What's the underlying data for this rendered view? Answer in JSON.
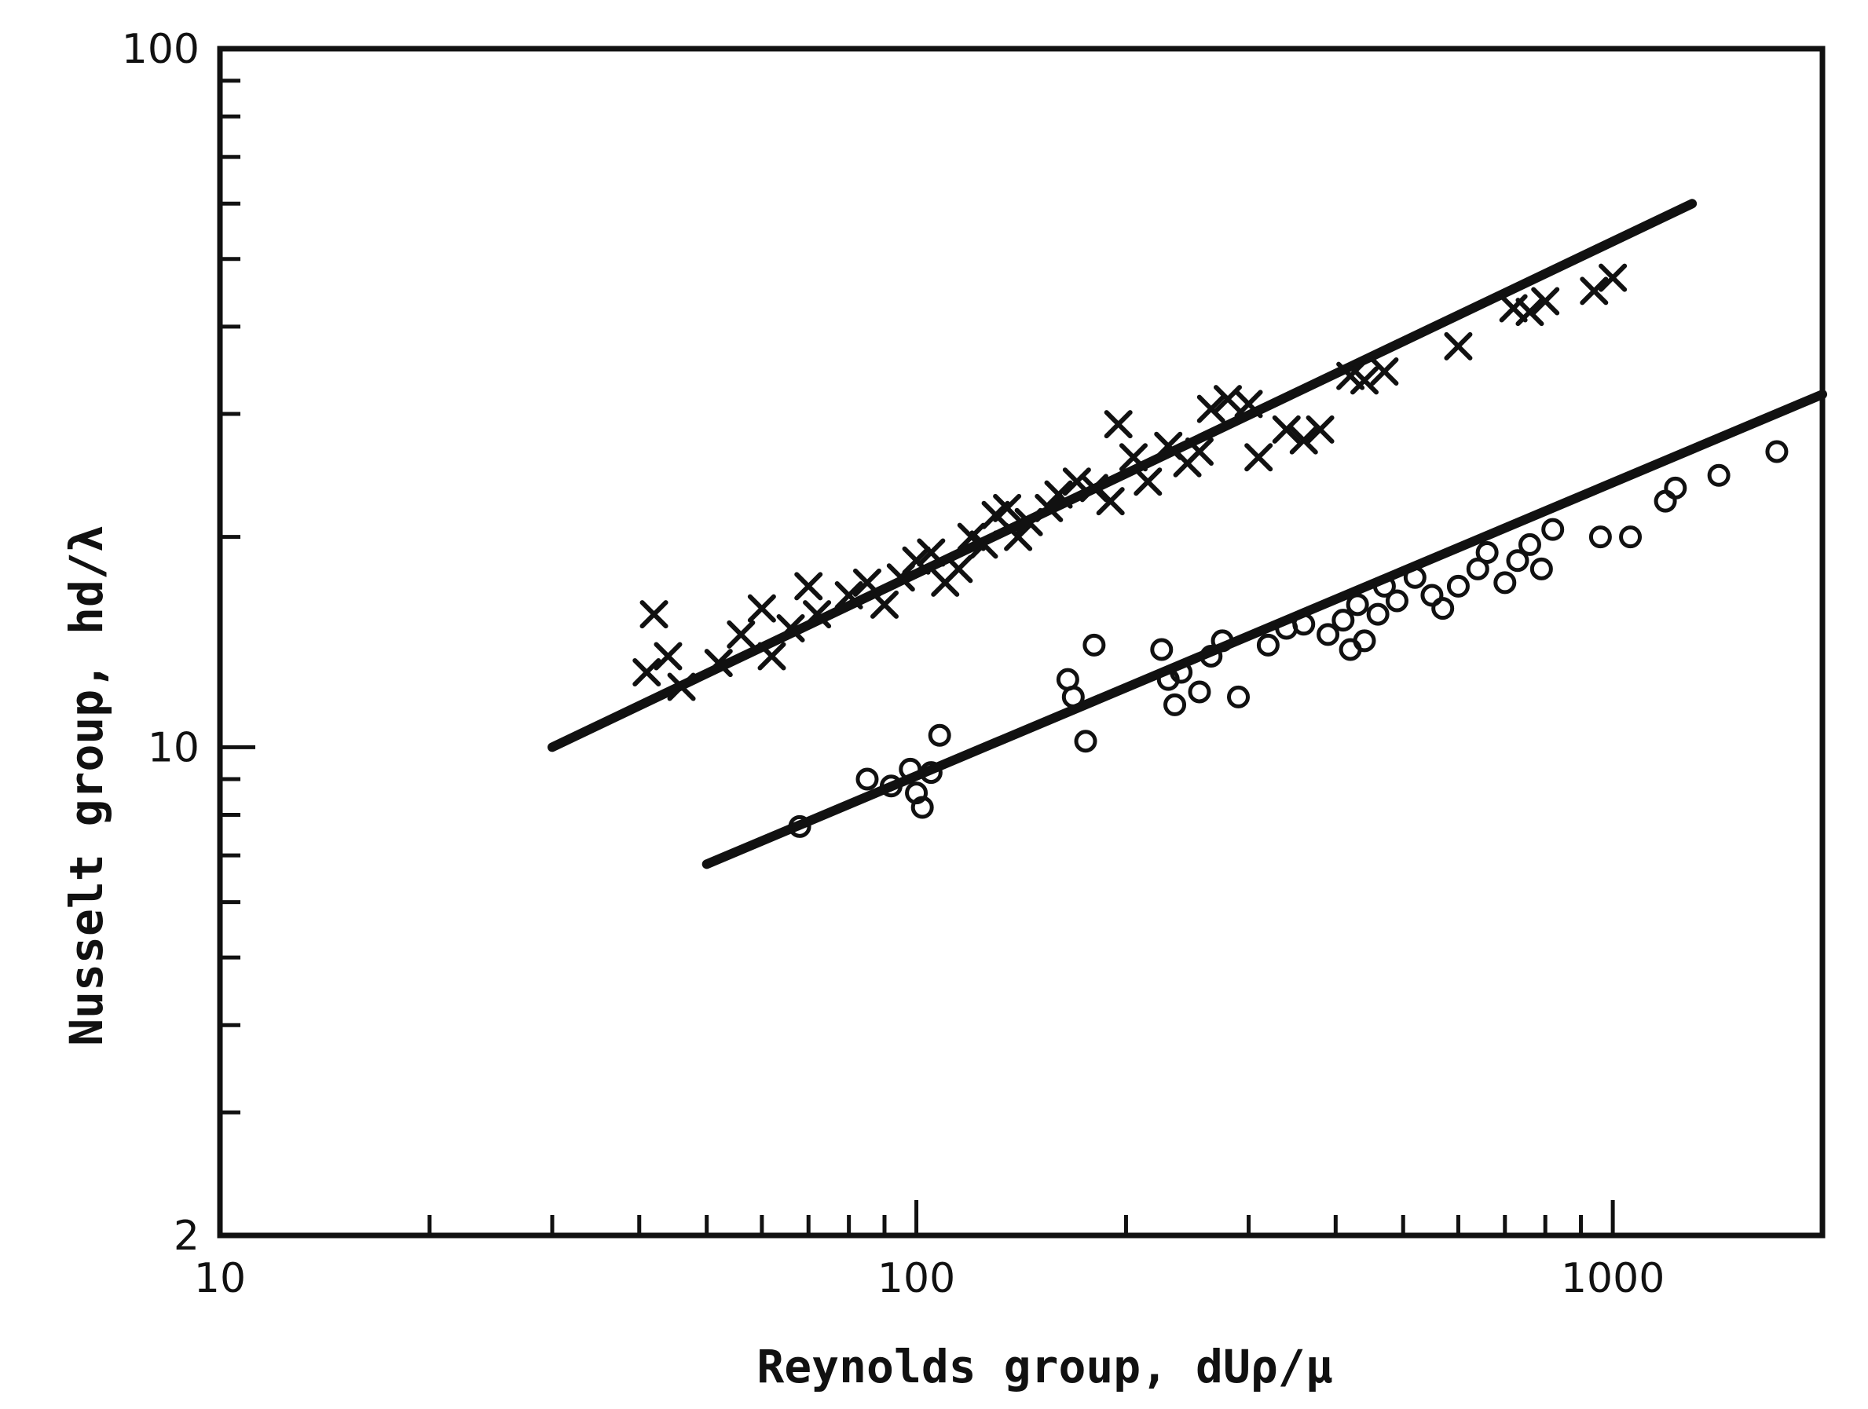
{
  "chart_data": {
    "type": "scatter",
    "title": "",
    "xlabel": "Reynolds  group,  dUρ/μ",
    "ylabel": "Nusselt  group,  hd/λ",
    "x_scale": "log",
    "y_scale": "log",
    "xlim": [
      10,
      2000
    ],
    "ylim": [
      2,
      100
    ],
    "grid": false,
    "legend": "none",
    "x_ticks": [
      {
        "value": 10,
        "label": "10"
      },
      {
        "value": 100,
        "label": "100"
      },
      {
        "value": 1000,
        "label": "1000"
      }
    ],
    "y_ticks": [
      {
        "value": 2,
        "label": "2"
      },
      {
        "value": 10,
        "label": "10"
      },
      {
        "value": 100,
        "label": "100"
      }
    ],
    "x_minor_ticks": [
      20,
      30,
      40,
      50,
      60,
      70,
      80,
      90,
      200,
      300,
      400,
      500,
      600,
      700,
      800,
      900
    ],
    "y_minor_ticks": [
      3,
      4,
      5,
      6,
      7,
      8,
      9,
      20,
      30,
      40,
      50,
      60,
      70,
      80,
      90
    ],
    "series": [
      {
        "marker": "x",
        "points": [
          [
            42,
            15.5
          ],
          [
            44,
            13.5
          ],
          [
            46,
            12.2
          ],
          [
            41,
            12.8
          ],
          [
            52,
            13.2
          ],
          [
            56,
            14.5
          ],
          [
            60,
            15.8
          ],
          [
            62,
            13.5
          ],
          [
            66,
            14.8
          ],
          [
            70,
            17
          ],
          [
            72,
            15.5
          ],
          [
            80,
            16.5
          ],
          [
            85,
            17.2
          ],
          [
            90,
            16
          ],
          [
            95,
            17.5
          ],
          [
            100,
            18.5
          ],
          [
            105,
            19
          ],
          [
            110,
            17.2
          ],
          [
            115,
            18
          ],
          [
            120,
            20
          ],
          [
            125,
            19.5
          ],
          [
            130,
            21.5
          ],
          [
            135,
            22
          ],
          [
            140,
            20
          ],
          [
            145,
            21
          ],
          [
            155,
            22
          ],
          [
            160,
            23
          ],
          [
            170,
            24
          ],
          [
            180,
            23.5
          ],
          [
            190,
            22.5
          ],
          [
            195,
            29
          ],
          [
            205,
            26
          ],
          [
            215,
            24
          ],
          [
            230,
            27
          ],
          [
            245,
            25.5
          ],
          [
            255,
            26.5
          ],
          [
            265,
            30.5
          ],
          [
            280,
            31.5
          ],
          [
            300,
            31
          ],
          [
            310,
            26
          ],
          [
            340,
            28.5
          ],
          [
            360,
            27.5
          ],
          [
            380,
            28.5
          ],
          [
            420,
            34
          ],
          [
            440,
            33.5
          ],
          [
            470,
            34.5
          ],
          [
            600,
            37.5
          ],
          [
            720,
            42.5
          ],
          [
            760,
            42
          ],
          [
            800,
            43.5
          ],
          [
            940,
            45
          ],
          [
            1000,
            47
          ]
        ]
      },
      {
        "marker": "o",
        "points": [
          [
            68,
            7.7
          ],
          [
            85,
            9
          ],
          [
            92,
            8.8
          ],
          [
            98,
            9.3
          ],
          [
            100,
            8.6
          ],
          [
            102,
            8.2
          ],
          [
            105,
            9.2
          ],
          [
            108,
            10.4
          ],
          [
            165,
            12.5
          ],
          [
            168,
            11.8
          ],
          [
            175,
            10.2
          ],
          [
            180,
            14
          ],
          [
            225,
            13.8
          ],
          [
            230,
            12.5
          ],
          [
            235,
            11.5
          ],
          [
            240,
            12.8
          ],
          [
            255,
            12
          ],
          [
            265,
            13.5
          ],
          [
            275,
            14.2
          ],
          [
            290,
            11.8
          ],
          [
            320,
            14
          ],
          [
            340,
            14.8
          ],
          [
            360,
            15
          ],
          [
            390,
            14.5
          ],
          [
            410,
            15.2
          ],
          [
            420,
            13.8
          ],
          [
            430,
            16
          ],
          [
            440,
            14.2
          ],
          [
            460,
            15.5
          ],
          [
            470,
            17
          ],
          [
            490,
            16.2
          ],
          [
            520,
            17.5
          ],
          [
            550,
            16.5
          ],
          [
            570,
            15.8
          ],
          [
            600,
            17
          ],
          [
            640,
            18
          ],
          [
            660,
            19
          ],
          [
            700,
            17.2
          ],
          [
            730,
            18.5
          ],
          [
            760,
            19.5
          ],
          [
            790,
            18
          ],
          [
            820,
            20.5
          ],
          [
            960,
            20
          ],
          [
            1060,
            20
          ],
          [
            1190,
            22.5
          ],
          [
            1230,
            23.5
          ],
          [
            1420,
            24.5
          ],
          [
            1720,
            26.5
          ]
        ]
      }
    ],
    "fit_lines": [
      {
        "marker_series": "x",
        "from": [
          30,
          10
        ],
        "to": [
          1300,
          60
        ]
      },
      {
        "marker_series": "o",
        "from": [
          50,
          6.8
        ],
        "to": [
          2000,
          32
        ]
      }
    ]
  }
}
